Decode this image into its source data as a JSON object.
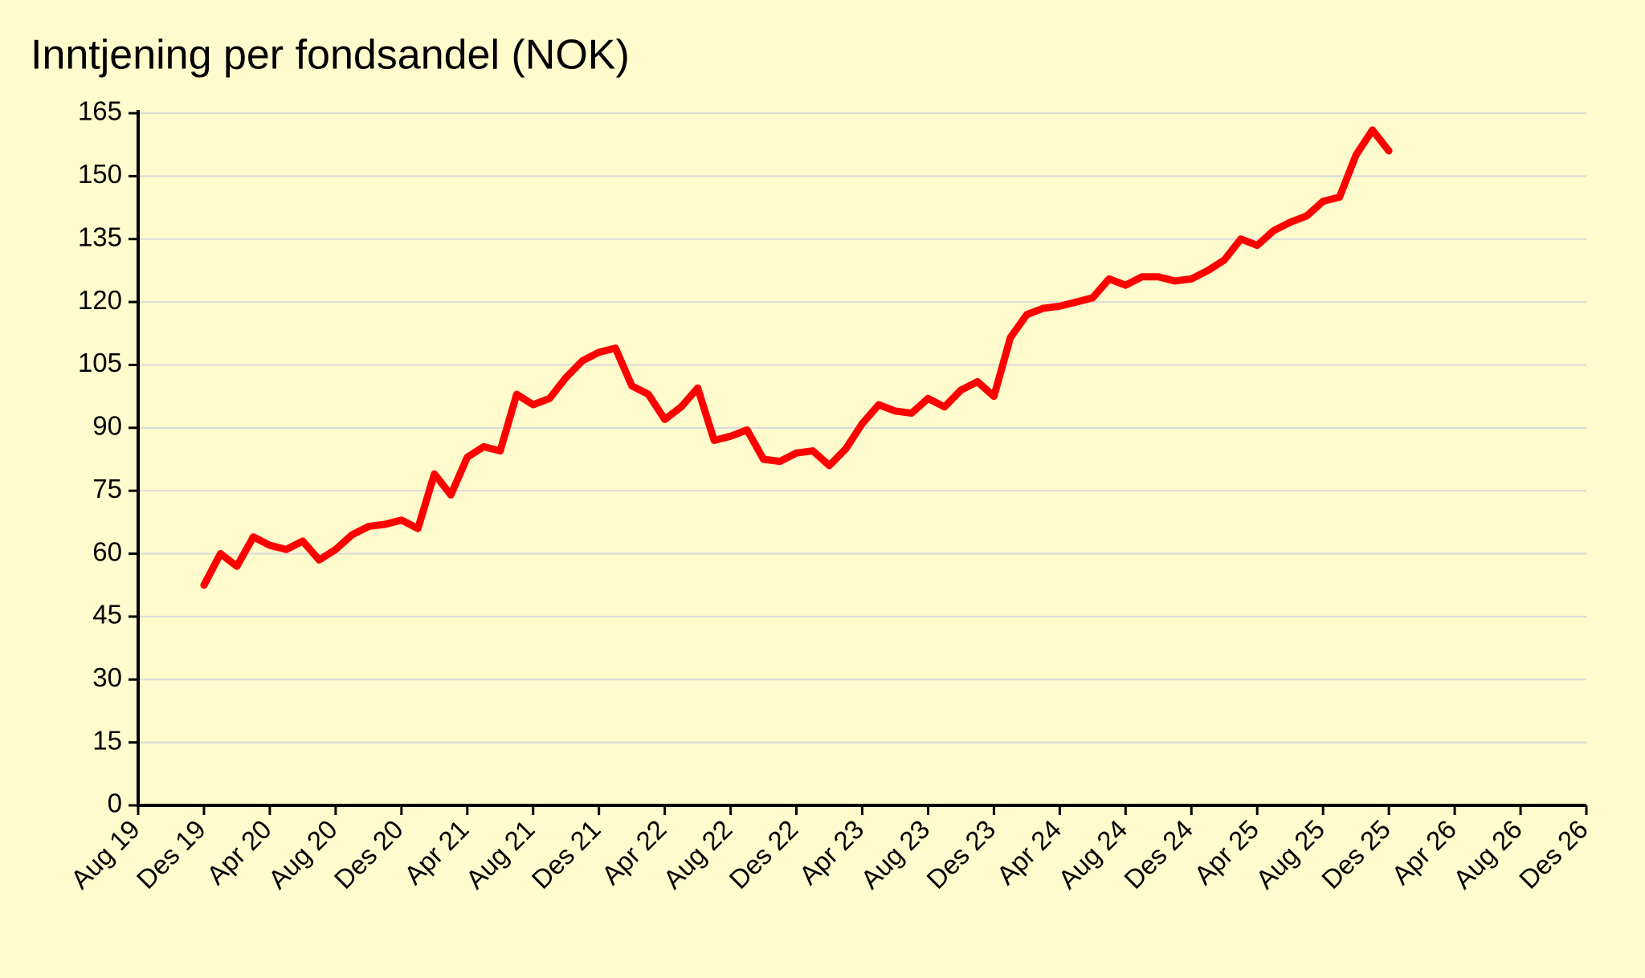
{
  "chart_data": {
    "type": "line",
    "title": "Inntjening per fondsandel (NOK)",
    "x": [
      "2019-12",
      "2020-01",
      "2020-02",
      "2020-03",
      "2020-04",
      "2020-05",
      "2020-06",
      "2020-07",
      "2020-08",
      "2020-09",
      "2020-10",
      "2020-11",
      "2020-12",
      "2021-01",
      "2021-02",
      "2021-03",
      "2021-04",
      "2021-05",
      "2021-06",
      "2021-07",
      "2021-08",
      "2021-09",
      "2021-10",
      "2021-11",
      "2021-12",
      "2022-01",
      "2022-02",
      "2022-03",
      "2022-04",
      "2022-05",
      "2022-06",
      "2022-07",
      "2022-08",
      "2022-09",
      "2022-10",
      "2022-11",
      "2022-12",
      "2023-01",
      "2023-02",
      "2023-03",
      "2023-04",
      "2023-05",
      "2023-06",
      "2023-07",
      "2023-08",
      "2023-09",
      "2023-10",
      "2023-11",
      "2023-12",
      "2024-01",
      "2024-02",
      "2024-03",
      "2024-04",
      "2024-05",
      "2024-06",
      "2024-07",
      "2024-08",
      "2024-09",
      "2024-10",
      "2024-11",
      "2024-12",
      "2025-01",
      "2025-02",
      "2025-03",
      "2025-04",
      "2025-05",
      "2025-06",
      "2025-07",
      "2025-08",
      "2025-09",
      "2025-10",
      "2025-11",
      "2025-12"
    ],
    "series": [
      {
        "color": "#ff0000",
        "values": [
          52.5,
          60,
          57,
          64,
          62,
          61,
          63,
          58.5,
          61,
          64.5,
          66.5,
          67,
          68,
          66,
          79,
          74,
          83,
          85.5,
          84.5,
          98,
          95.5,
          97,
          102,
          106,
          108,
          109,
          100,
          98,
          92,
          95,
          99.5,
          87,
          88,
          89.5,
          82.5,
          82,
          84,
          84.5,
          81,
          85,
          91,
          95.5,
          94,
          93.5,
          97,
          95,
          99,
          101,
          97.5,
          111.5,
          117,
          118.5,
          119,
          120,
          121,
          125.5,
          124,
          126,
          126,
          125,
          125.5,
          127.5,
          130,
          135,
          133.5,
          137,
          139,
          140.5,
          144,
          145,
          155,
          161,
          156
        ]
      }
    ],
    "xlim": [
      "2019-08",
      "2026-12"
    ],
    "xticks": [
      {
        "value": "2019-08",
        "label": "Aug 19"
      },
      {
        "value": "2019-12",
        "label": "Des 19"
      },
      {
        "value": "2020-04",
        "label": "Apr 20"
      },
      {
        "value": "2020-08",
        "label": "Aug 20"
      },
      {
        "value": "2020-12",
        "label": "Des 20"
      },
      {
        "value": "2021-04",
        "label": "Apr 21"
      },
      {
        "value": "2021-08",
        "label": "Aug 21"
      },
      {
        "value": "2021-12",
        "label": "Des 21"
      },
      {
        "value": "2022-04",
        "label": "Apr 22"
      },
      {
        "value": "2022-08",
        "label": "Aug 22"
      },
      {
        "value": "2022-12",
        "label": "Des 22"
      },
      {
        "value": "2023-04",
        "label": "Apr 23"
      },
      {
        "value": "2023-08",
        "label": "Aug 23"
      },
      {
        "value": "2023-12",
        "label": "Des 23"
      },
      {
        "value": "2024-04",
        "label": "Apr 24"
      },
      {
        "value": "2024-08",
        "label": "Aug 24"
      },
      {
        "value": "2024-12",
        "label": "Des 24"
      },
      {
        "value": "2025-04",
        "label": "Apr 25"
      },
      {
        "value": "2025-08",
        "label": "Aug 25"
      },
      {
        "value": "2025-12",
        "label": "Des 25"
      },
      {
        "value": "2026-04",
        "label": "Apr 26"
      },
      {
        "value": "2026-08",
        "label": "Aug 26"
      },
      {
        "value": "2026-12",
        "label": "Des 26"
      }
    ],
    "ylim": [
      0,
      165
    ],
    "yticks": [
      0,
      15,
      30,
      45,
      60,
      75,
      90,
      105,
      120,
      135,
      150,
      165
    ],
    "grid": true
  }
}
